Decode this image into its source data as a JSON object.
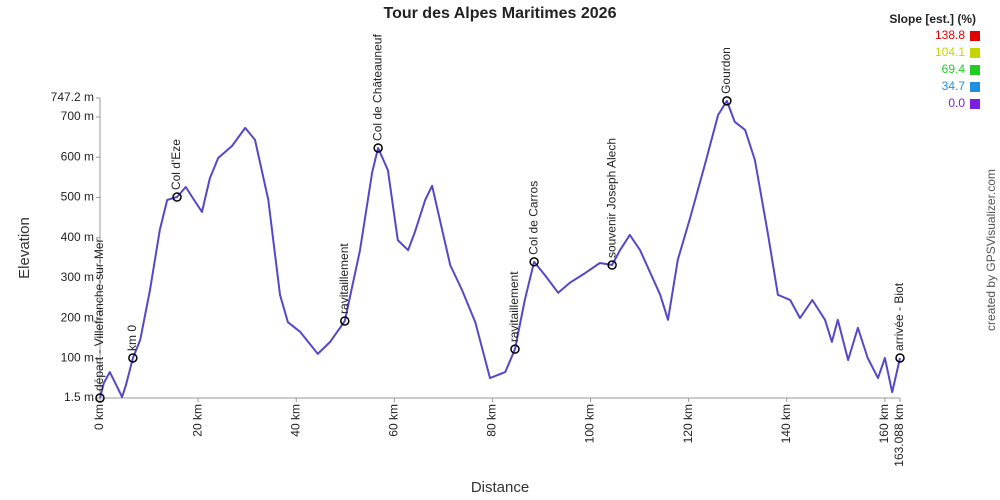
{
  "chart_data": {
    "type": "line",
    "title": "Tour des Alpes Maritimes 2026",
    "x_label": "Distance",
    "y_label": "Elevation",
    "credit": "created by GPSVisualizer.com",
    "xlim": [
      0,
      163.088
    ],
    "ylim": [
      1.5,
      747.2
    ],
    "xticks": [
      {
        "value": 0,
        "label": "0 km"
      },
      {
        "value": 20,
        "label": "20 km"
      },
      {
        "value": 40,
        "label": "40 km"
      },
      {
        "value": 60,
        "label": "60 km"
      },
      {
        "value": 80,
        "label": "80 km"
      },
      {
        "value": 100,
        "label": "100 km"
      },
      {
        "value": 120,
        "label": "120 km"
      },
      {
        "value": 140,
        "label": "140 km"
      },
      {
        "value": 160,
        "label": "160 km"
      },
      {
        "value": 163.088,
        "label": "163.088 km"
      }
    ],
    "yticks": [
      {
        "value": 1.5,
        "label": "1.5 m"
      },
      {
        "value": 100,
        "label": "100 m"
      },
      {
        "value": 200,
        "label": "200 m"
      },
      {
        "value": 300,
        "label": "300 m"
      },
      {
        "value": 400,
        "label": "400 m"
      },
      {
        "value": 500,
        "label": "500 m"
      },
      {
        "value": 600,
        "label": "600 m"
      },
      {
        "value": 700,
        "label": "700 m"
      },
      {
        "value": 747.2,
        "label": "747.2 m"
      }
    ],
    "series": [
      {
        "name": "Elevation",
        "color": "#5548c8",
        "x": [
          0,
          0.8,
          2,
          3.3,
          4.5,
          5.3,
          6.7,
          8.2,
          10.2,
          12.2,
          13.7,
          15.7,
          17.5,
          18.9,
          20.8,
          22.4,
          24.1,
          26.9,
          29.6,
          31.6,
          34.3,
          36.7,
          38.3,
          40.8,
          44.4,
          46.9,
          49.9,
          53,
          55.5,
          56.7,
          58.7,
          60.7,
          62.8,
          64.2,
          66.3,
          67.7,
          69.3,
          71.4,
          73.8,
          76.5,
          79.5,
          82.6,
          84.6,
          86.6,
          88.5,
          90.7,
          93.4,
          95.8,
          98.9,
          101.9,
          104.4,
          106,
          108,
          110.1,
          114.2,
          115.8,
          117.8,
          120.3,
          123.3,
          126,
          127.8,
          129.4,
          131.5,
          133.5,
          136.2,
          138.2,
          140.7,
          142.7,
          145.2,
          147.8,
          149.2,
          150.4,
          152.5,
          154.5,
          156.5,
          158.6,
          160,
          161.5,
          163.088
        ],
        "values": [
          1.5,
          39,
          66,
          34,
          4,
          34,
          101,
          146,
          270,
          419,
          494,
          501,
          526,
          499,
          464,
          548,
          598,
          628,
          673,
          643,
          494,
          258,
          190,
          166,
          111,
          141,
          193,
          369,
          563,
          623,
          568,
          394,
          369,
          414,
          494,
          529,
          444,
          332,
          270,
          190,
          51,
          66,
          123,
          245,
          340,
          307,
          263,
          288,
          312,
          337,
          332,
          369,
          407,
          369,
          258,
          196,
          345,
          449,
          581,
          705,
          740,
          688,
          668,
          593,
          407,
          258,
          245,
          200,
          245,
          196,
          141,
          196,
          96,
          176,
          101,
          51,
          101,
          16,
          101
        ]
      }
    ],
    "waypoints": [
      {
        "label": "départ - Villefranche-sur-Mer",
        "x": 0,
        "y": 1.5
      },
      {
        "label": "km 0",
        "x": 6.7,
        "y": 101
      },
      {
        "label": "Col d'Eze",
        "x": 15.7,
        "y": 501
      },
      {
        "label": "ravitaillement",
        "x": 49.9,
        "y": 193
      },
      {
        "label": "Col de Châteauneuf",
        "x": 56.7,
        "y": 623
      },
      {
        "label": "ravitaillement",
        "x": 84.6,
        "y": 123
      },
      {
        "label": "Col de Carros",
        "x": 88.5,
        "y": 340
      },
      {
        "label": "souvenir Joseph Alech",
        "x": 104.4,
        "y": 332
      },
      {
        "label": "Gourdon",
        "x": 127.8,
        "y": 740
      },
      {
        "label": "arrivée - Biot",
        "x": 163.088,
        "y": 101
      }
    ],
    "legend": {
      "title": "Slope [est.] (%)",
      "items": [
        {
          "value": 138.8,
          "color": "#e00000"
        },
        {
          "value": 104.1,
          "color": "#c8d400"
        },
        {
          "value": 69.4,
          "color": "#22cc22"
        },
        {
          "value": 34.7,
          "color": "#1e90e0"
        },
        {
          "value": {
            "value": 0,
            "label": "0.0"
          },
          "color": "#7a1ee0"
        }
      ]
    }
  }
}
